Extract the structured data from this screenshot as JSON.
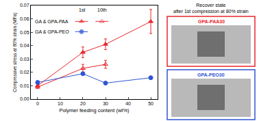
{
  "chart_data": {
    "type": "line",
    "x_label": "Polymer feeding content (wt%)",
    "y_label": "Compressive stress at 80% strain (MPa)",
    "xlim": [
      -3,
      53
    ],
    "xticks": [
      0,
      10,
      20,
      30,
      40,
      50
    ],
    "ylim": [
      0,
      0.07
    ],
    "yticks": [
      {
        "value": 0,
        "label": "0.00"
      },
      0.01,
      0.02,
      0.03,
      0.04,
      0.05,
      0.06,
      0.07
    ],
    "grid": false,
    "legend": "upper left",
    "legend_columns": [
      "1st",
      "10th"
    ],
    "series": [
      {
        "name": "GA & GPA-PAA",
        "column": "1st",
        "color": "#e8262b",
        "marker": "triangle-up",
        "x": [
          0,
          20,
          30,
          50
        ],
        "values": [
          0.01,
          0.035,
          0.041,
          0.058
        ],
        "errors": [
          0.001,
          0.004,
          0.004,
          0.009
        ]
      },
      {
        "name": "GA & GPA-PAA",
        "column": "10th",
        "color": "#e8262b",
        "marker": "triangle-up-open",
        "x": [
          0,
          20,
          30
        ],
        "values": [
          0.009,
          0.023,
          0.026
        ],
        "errors": [
          0.001,
          0.003,
          0.003
        ]
      },
      {
        "name": "GA & GPA-PEO",
        "column": "1st",
        "color": "#2f55d4",
        "marker": "circle",
        "x": [
          0,
          20,
          30,
          50
        ],
        "values": [
          0.0125,
          0.019,
          0.012,
          0.016
        ]
      }
    ],
    "panel": {
      "title": [
        "Recover state",
        "after 1st compression at 80% strain"
      ],
      "images": [
        {
          "label": "GPA-PAA30",
          "color": "#e8262b"
        },
        {
          "label": "GPA-PEO30",
          "color": "#2f55d4"
        }
      ]
    }
  }
}
